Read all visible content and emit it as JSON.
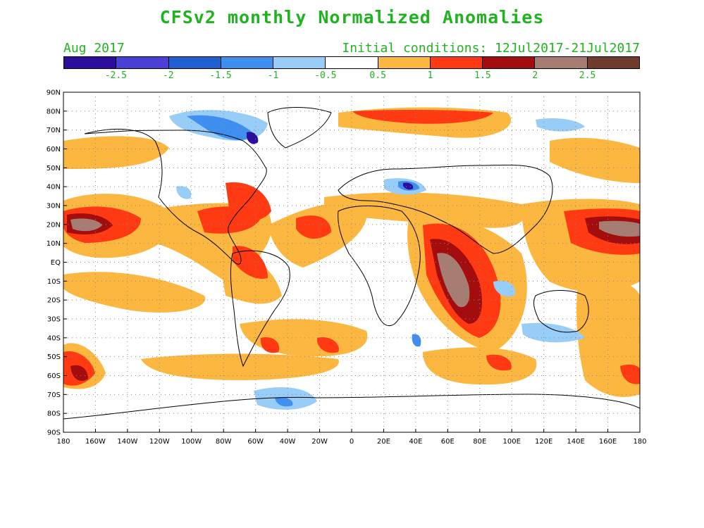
{
  "title": "CFSv2 monthly Normalized Anomalies",
  "valid_month": "Aug 2017",
  "initial_conditions": "Initial conditions: 12Jul2017-21Jul2017",
  "colorbar": {
    "colors": [
      "#2d0d9b",
      "#4a3fd6",
      "#1f5fd0",
      "#3f8ff0",
      "#98cdf8",
      "#ffffff",
      "#fbb73f",
      "#ff3a12",
      "#a30d0d",
      "#a67c73",
      "#6e3b2d"
    ],
    "labels": [
      "-2.5",
      "-2",
      "-1.5",
      "-1",
      "-0.5",
      "0.5",
      "1",
      "1.5",
      "2",
      "2.5"
    ]
  },
  "axes": {
    "lat_labels": [
      "90N",
      "80N",
      "70N",
      "60N",
      "50N",
      "40N",
      "30N",
      "20N",
      "10N",
      "EQ",
      "10S",
      "20S",
      "30S",
      "40S",
      "50S",
      "60S",
      "70S",
      "80S",
      "90S"
    ],
    "lon_labels": [
      "180",
      "160W",
      "140W",
      "120W",
      "100W",
      "80W",
      "60W",
      "40W",
      "20W",
      "0",
      "20E",
      "40E",
      "60E",
      "80E",
      "100E",
      "120E",
      "140E",
      "160E",
      "180"
    ]
  }
}
